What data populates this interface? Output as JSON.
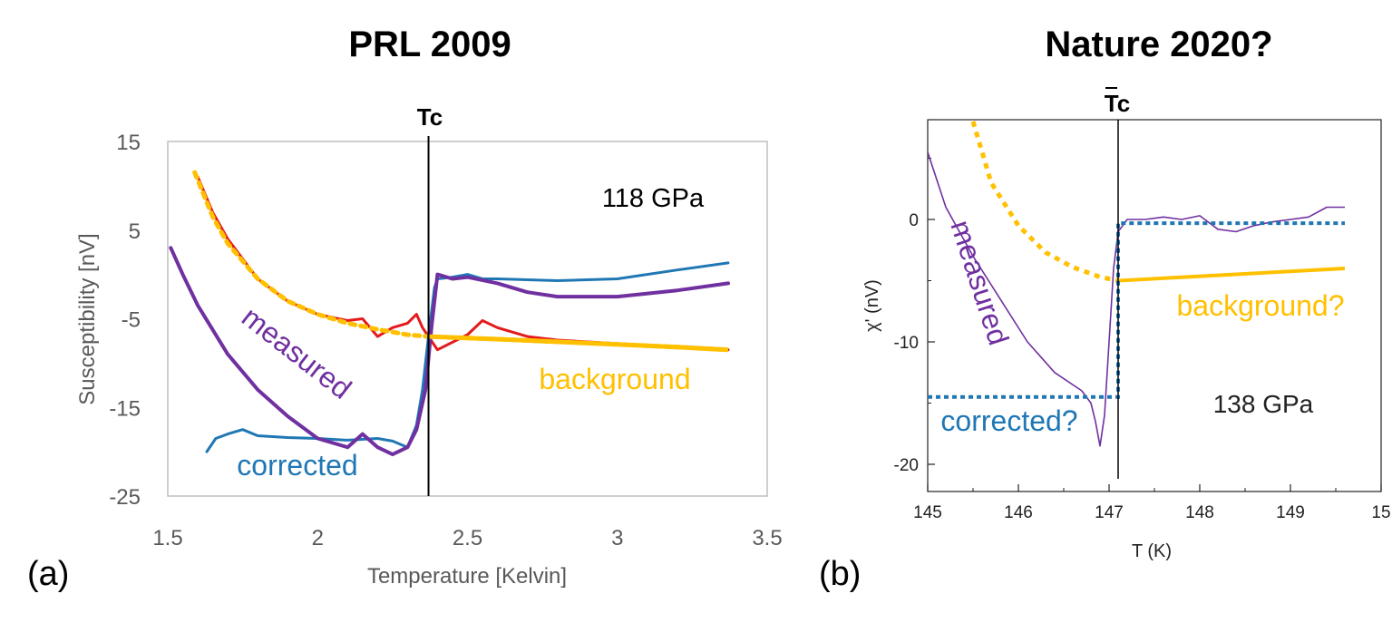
{
  "chart_data": [
    {
      "type": "line",
      "panel_label": "(a)",
      "title": "PRL 2009",
      "xlabel": "Temperature  [Kelvin]",
      "ylabel": "Susceptibility [nV]",
      "xlim": [
        1.5,
        3.5
      ],
      "ylim": [
        -25,
        15
      ],
      "x_ticks": [
        "1.5",
        "2",
        "2.5",
        "3",
        "3.5"
      ],
      "y_ticks": [
        "15",
        "5",
        "-5",
        "-15",
        "-25"
      ],
      "tc_label": "Tc",
      "tc_x": 2.37,
      "pressure_label": "118 GPa",
      "colors": {
        "measured": "#7030A0",
        "corrected": "#1F77B4",
        "background": "#FFC000",
        "background_fit": "#E41A1C"
      },
      "series": [
        {
          "name": "measured",
          "x": [
            1.51,
            1.55,
            1.6,
            1.7,
            1.8,
            1.9,
            2.0,
            2.1,
            2.15,
            2.2,
            2.25,
            2.3,
            2.33,
            2.36,
            2.38,
            2.4,
            2.45,
            2.5,
            2.6,
            2.7,
            2.8,
            3.0,
            3.2,
            3.37
          ],
          "y": [
            3,
            0,
            -3.5,
            -9,
            -13,
            -16,
            -18.5,
            -19.5,
            -18,
            -19.5,
            -20.3,
            -19.5,
            -17.5,
            -13,
            -6,
            0,
            -0.5,
            -0.3,
            -1,
            -2,
            -2.5,
            -2.5,
            -1.8,
            -1
          ]
        },
        {
          "name": "corrected",
          "x": [
            1.63,
            1.66,
            1.7,
            1.75,
            1.8,
            1.9,
            2.0,
            2.1,
            2.2,
            2.25,
            2.3,
            2.33,
            2.35,
            2.37,
            2.39,
            2.4,
            2.45,
            2.5,
            2.55,
            2.6,
            2.8,
            3.0,
            3.2,
            3.37
          ],
          "y": [
            -20,
            -18.5,
            -18,
            -17.5,
            -18.2,
            -18.4,
            -18.5,
            -18.7,
            -18.5,
            -18.8,
            -19.5,
            -17,
            -13,
            -7,
            -1.5,
            -0.5,
            -0.3,
            0,
            -0.5,
            -0.5,
            -0.7,
            -0.5,
            0.5,
            1.3
          ]
        },
        {
          "name": "background",
          "x": [
            1.59,
            1.65,
            1.7,
            1.8,
            1.9,
            2.0,
            2.1,
            2.2,
            2.3,
            2.37,
            2.6,
            2.8,
            3.0,
            3.2,
            3.37
          ],
          "y": [
            11.5,
            6.5,
            3.5,
            -0.5,
            -3,
            -4.5,
            -5.5,
            -6.2,
            -6.8,
            -7,
            -7.3,
            -7.6,
            -7.9,
            -8.2,
            -8.5
          ]
        },
        {
          "name": "background fit",
          "x": [
            1.6,
            1.65,
            1.7,
            1.8,
            1.9,
            2.0,
            2.1,
            2.15,
            2.2,
            2.25,
            2.3,
            2.33,
            2.35,
            2.37,
            2.4,
            2.5,
            2.55,
            2.6,
            2.7,
            2.8,
            3.0,
            3.2,
            3.37
          ],
          "y": [
            11,
            7,
            4,
            -0.5,
            -3,
            -4.5,
            -5.2,
            -5,
            -7,
            -6,
            -5.5,
            -4.5,
            -6,
            -7,
            -8.5,
            -6.8,
            -5.2,
            -6,
            -7,
            -7.4,
            -7.8,
            -8.2,
            -8.5
          ]
        }
      ],
      "annotations": [
        "measured",
        "corrected",
        "background"
      ]
    },
    {
      "type": "line",
      "panel_label": "(b)",
      "title": "Nature 2020?",
      "xlabel": "T (K)",
      "ylabel": "χ' (nV)",
      "xlim": [
        145,
        150
      ],
      "ylim": [
        -22,
        8
      ],
      "x_ticks": [
        "145",
        "146",
        "147",
        "148",
        "149",
        "15"
      ],
      "y_ticks": [
        "0",
        "-10",
        "-20"
      ],
      "tc_label": "Tc",
      "tc_x": 147.1,
      "pressure_label": "138 GPa",
      "colors": {
        "measured": "#7030A0",
        "corrected": "#1F77B4",
        "background": "#FFC000"
      },
      "series": [
        {
          "name": "measured",
          "x": [
            145.0,
            145.2,
            145.5,
            145.8,
            146.1,
            146.4,
            146.7,
            146.8,
            146.85,
            146.9,
            146.95,
            147.0,
            147.05,
            147.1,
            147.2,
            147.4,
            147.6,
            147.8,
            148.0,
            148.2,
            148.4,
            148.6,
            148.8,
            149.0,
            149.2,
            149.4,
            149.6
          ],
          "y": [
            5.5,
            1,
            -3,
            -6.5,
            -10,
            -12.5,
            -14,
            -15,
            -16.5,
            -18.5,
            -16,
            -10,
            -4,
            -1,
            0,
            0,
            0.2,
            0,
            0.3,
            -0.8,
            -1,
            -0.5,
            -0.2,
            0,
            0.2,
            1,
            1
          ]
        },
        {
          "name": "background?",
          "x": [
            145.5,
            145.7,
            146.0,
            146.3,
            146.6,
            146.9,
            147.1
          ],
          "y": [
            8,
            3,
            -0.5,
            -2.7,
            -3.9,
            -4.7,
            -5
          ]
        },
        {
          "name": "background?",
          "x": [
            147.1,
            149.6
          ],
          "y": [
            -5,
            -4
          ]
        },
        {
          "name": "corrected?",
          "x": [
            145.0,
            147.1,
            147.1,
            149.6
          ],
          "y": [
            -14.5,
            -14.5,
            -0.3,
            -0.3
          ]
        }
      ],
      "annotations": [
        "measured",
        "corrected?",
        "background?"
      ]
    }
  ]
}
